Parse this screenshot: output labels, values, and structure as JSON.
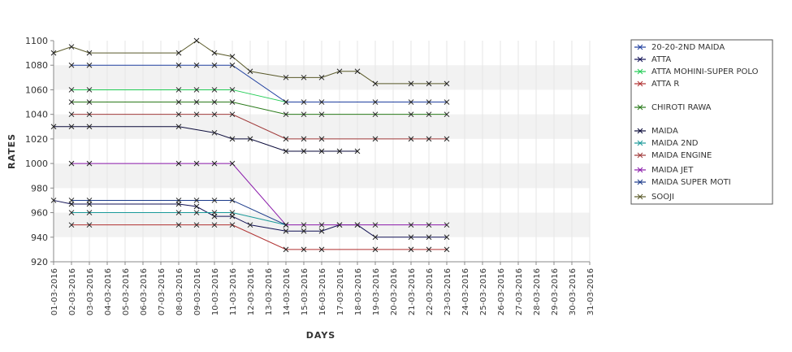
{
  "chart_data": {
    "type": "line",
    "title": "",
    "xlabel": "DAYS",
    "ylabel": "RATES",
    "ylim": [
      920,
      1100
    ],
    "yticks": [
      920,
      940,
      960,
      980,
      1000,
      1020,
      1040,
      1060,
      1080,
      1100
    ],
    "grid": "alternating horizontal bands",
    "legend_position": "right",
    "x": [
      "01-03-2016",
      "02-03-2016",
      "03-03-2016",
      "04-03-2016",
      "05-03-2016",
      "06-03-2016",
      "07-03-2016",
      "08-03-2016",
      "09-03-2016",
      "10-03-2016",
      "11-03-2016",
      "12-03-2016",
      "13-03-2016",
      "14-03-2016",
      "15-03-2016",
      "16-03-2016",
      "17-03-2016",
      "18-03-2016",
      "19-03-2016",
      "20-03-2016",
      "21-03-2016",
      "22-03-2016",
      "23-03-2016",
      "24-03-2016",
      "25-03-2016",
      "26-03-2016",
      "27-03-2016",
      "28-03-2016",
      "29-03-2016",
      "30-03-2016",
      "31-03-2016"
    ],
    "series": [
      {
        "name": "20-20-2ND MAIDA",
        "color": "#1f3f9f",
        "points": [
          [
            "02-03-2016",
            1080
          ],
          [
            "03-03-2016",
            1080
          ],
          [
            "08-03-2016",
            1080
          ],
          [
            "09-03-2016",
            1080
          ],
          [
            "10-03-2016",
            1080
          ],
          [
            "11-03-2016",
            1080
          ],
          [
            "14-03-2016",
            1050
          ],
          [
            "15-03-2016",
            1050
          ],
          [
            "16-03-2016",
            1050
          ],
          [
            "19-03-2016",
            1050
          ],
          [
            "21-03-2016",
            1050
          ],
          [
            "22-03-2016",
            1050
          ],
          [
            "23-03-2016",
            1050
          ]
        ]
      },
      {
        "name": "ATTA",
        "color": "#111155",
        "points": [
          [
            "01-03-2016",
            970
          ],
          [
            "02-03-2016",
            967
          ],
          [
            "03-03-2016",
            967
          ],
          [
            "08-03-2016",
            967
          ],
          [
            "09-03-2016",
            965
          ],
          [
            "10-03-2016",
            957
          ],
          [
            "11-03-2016",
            957
          ],
          [
            "12-03-2016",
            950
          ],
          [
            "14-03-2016",
            945
          ],
          [
            "15-03-2016",
            945
          ],
          [
            "16-03-2016",
            945
          ],
          [
            "17-03-2016",
            950
          ],
          [
            "18-03-2016",
            950
          ],
          [
            "19-03-2016",
            940
          ],
          [
            "21-03-2016",
            940
          ],
          [
            "22-03-2016",
            940
          ],
          [
            "23-03-2016",
            940
          ]
        ]
      },
      {
        "name": "ATTA MOHINI-SUPER POLO",
        "color": "#22cc55",
        "points": [
          [
            "02-03-2016",
            1060
          ],
          [
            "03-03-2016",
            1060
          ],
          [
            "08-03-2016",
            1060
          ],
          [
            "09-03-2016",
            1060
          ],
          [
            "10-03-2016",
            1060
          ],
          [
            "11-03-2016",
            1060
          ],
          [
            "14-03-2016",
            1050
          ]
        ]
      },
      {
        "name": "ATTA R",
        "color": "#b03030",
        "points": [
          [
            "02-03-2016",
            950
          ],
          [
            "03-03-2016",
            950
          ],
          [
            "08-03-2016",
            950
          ],
          [
            "09-03-2016",
            950
          ],
          [
            "10-03-2016",
            950
          ],
          [
            "11-03-2016",
            950
          ],
          [
            "14-03-2016",
            930
          ],
          [
            "15-03-2016",
            930
          ],
          [
            "16-03-2016",
            930
          ],
          [
            "19-03-2016",
            930
          ],
          [
            "21-03-2016",
            930
          ],
          [
            "22-03-2016",
            930
          ],
          [
            "23-03-2016",
            930
          ]
        ]
      },
      {
        "name": "CHIROTI RAWA",
        "color": "#2a7a1a",
        "points": [
          [
            "02-03-2016",
            1050
          ],
          [
            "03-03-2016",
            1050
          ],
          [
            "08-03-2016",
            1050
          ],
          [
            "09-03-2016",
            1050
          ],
          [
            "10-03-2016",
            1050
          ],
          [
            "11-03-2016",
            1050
          ],
          [
            "14-03-2016",
            1040
          ],
          [
            "15-03-2016",
            1040
          ],
          [
            "16-03-2016",
            1040
          ],
          [
            "19-03-2016",
            1040
          ],
          [
            "21-03-2016",
            1040
          ],
          [
            "22-03-2016",
            1040
          ],
          [
            "23-03-2016",
            1040
          ]
        ]
      },
      {
        "name": "MAIDA",
        "color": "#0a0a3a",
        "points": [
          [
            "01-03-2016",
            1030
          ],
          [
            "02-03-2016",
            1030
          ],
          [
            "03-03-2016",
            1030
          ],
          [
            "08-03-2016",
            1030
          ],
          [
            "10-03-2016",
            1025
          ],
          [
            "11-03-2016",
            1020
          ],
          [
            "12-03-2016",
            1020
          ],
          [
            "14-03-2016",
            1010
          ],
          [
            "15-03-2016",
            1010
          ],
          [
            "16-03-2016",
            1010
          ],
          [
            "17-03-2016",
            1010
          ],
          [
            "18-03-2016",
            1010
          ]
        ]
      },
      {
        "name": "MAIDA 2ND",
        "color": "#1a9a9a",
        "points": [
          [
            "02-03-2016",
            960
          ],
          [
            "03-03-2016",
            960
          ],
          [
            "08-03-2016",
            960
          ],
          [
            "09-03-2016",
            960
          ],
          [
            "10-03-2016",
            960
          ],
          [
            "11-03-2016",
            960
          ],
          [
            "14-03-2016",
            950
          ]
        ]
      },
      {
        "name": "MAIDA ENGINE",
        "color": "#a03a3a",
        "points": [
          [
            "02-03-2016",
            1040
          ],
          [
            "03-03-2016",
            1040
          ],
          [
            "08-03-2016",
            1040
          ],
          [
            "09-03-2016",
            1040
          ],
          [
            "10-03-2016",
            1040
          ],
          [
            "11-03-2016",
            1040
          ],
          [
            "14-03-2016",
            1020
          ],
          [
            "15-03-2016",
            1020
          ],
          [
            "16-03-2016",
            1020
          ],
          [
            "19-03-2016",
            1020
          ],
          [
            "21-03-2016",
            1020
          ],
          [
            "22-03-2016",
            1020
          ],
          [
            "23-03-2016",
            1020
          ]
        ]
      },
      {
        "name": "MAIDA JET",
        "color": "#8a1aaa",
        "points": [
          [
            "02-03-2016",
            1000
          ],
          [
            "03-03-2016",
            1000
          ],
          [
            "08-03-2016",
            1000
          ],
          [
            "09-03-2016",
            1000
          ],
          [
            "10-03-2016",
            1000
          ],
          [
            "11-03-2016",
            1000
          ],
          [
            "14-03-2016",
            950
          ],
          [
            "15-03-2016",
            950
          ],
          [
            "16-03-2016",
            950
          ],
          [
            "17-03-2016",
            950
          ],
          [
            "18-03-2016",
            950
          ],
          [
            "19-03-2016",
            950
          ],
          [
            "21-03-2016",
            950
          ],
          [
            "22-03-2016",
            950
          ],
          [
            "23-03-2016",
            950
          ]
        ]
      },
      {
        "name": "MAIDA SUPER MOTI",
        "color": "#1a3a8a",
        "points": [
          [
            "02-03-2016",
            970
          ],
          [
            "03-03-2016",
            970
          ],
          [
            "08-03-2016",
            970
          ],
          [
            "09-03-2016",
            970
          ],
          [
            "10-03-2016",
            970
          ],
          [
            "11-03-2016",
            970
          ],
          [
            "14-03-2016",
            950
          ]
        ]
      },
      {
        "name": "SOOJI",
        "color": "#5a5a2a",
        "points": [
          [
            "01-03-2016",
            1090
          ],
          [
            "02-03-2016",
            1095
          ],
          [
            "03-03-2016",
            1090
          ],
          [
            "08-03-2016",
            1090
          ],
          [
            "09-03-2016",
            1100
          ],
          [
            "10-03-2016",
            1090
          ],
          [
            "11-03-2016",
            1087
          ],
          [
            "12-03-2016",
            1075
          ],
          [
            "14-03-2016",
            1070
          ],
          [
            "15-03-2016",
            1070
          ],
          [
            "16-03-2016",
            1070
          ],
          [
            "17-03-2016",
            1075
          ],
          [
            "18-03-2016",
            1075
          ],
          [
            "19-03-2016",
            1065
          ],
          [
            "21-03-2016",
            1065
          ],
          [
            "22-03-2016",
            1065
          ],
          [
            "23-03-2016",
            1065
          ]
        ]
      }
    ]
  }
}
